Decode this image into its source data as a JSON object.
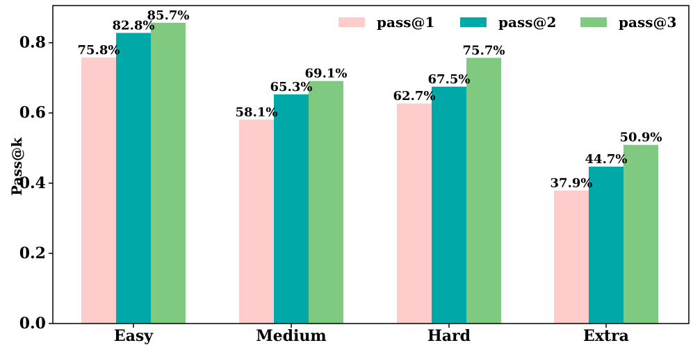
{
  "chart_data": {
    "type": "bar",
    "title": "",
    "xlabel": "",
    "ylabel": "Pass@k",
    "categories": [
      "Easy",
      "Medium",
      "Hard",
      "Extra"
    ],
    "series": [
      {
        "name": "pass@1",
        "color": "#ffcccc",
        "values": [
          0.758,
          0.581,
          0.627,
          0.379
        ],
        "labels": [
          "75.8%",
          "58.1%",
          "62.7%",
          "37.9%"
        ]
      },
      {
        "name": "pass@2",
        "color": "#00a8a8",
        "values": [
          0.828,
          0.653,
          0.675,
          0.447
        ],
        "labels": [
          "82.8%",
          "65.3%",
          "67.5%",
          "44.7%"
        ]
      },
      {
        "name": "pass@3",
        "color": "#80c980",
        "values": [
          0.857,
          0.691,
          0.757,
          0.509
        ],
        "labels": [
          "85.7%",
          "69.1%",
          "75.7%",
          "50.9%"
        ]
      }
    ],
    "ylim": [
      0,
      0.906
    ],
    "yticks": [
      0.0,
      0.2,
      0.4,
      0.6,
      0.8
    ],
    "ytick_labels": [
      "0.0",
      "0.2",
      "0.4",
      "0.6",
      "0.8"
    ],
    "grid": false,
    "legend_position": "top-right"
  }
}
